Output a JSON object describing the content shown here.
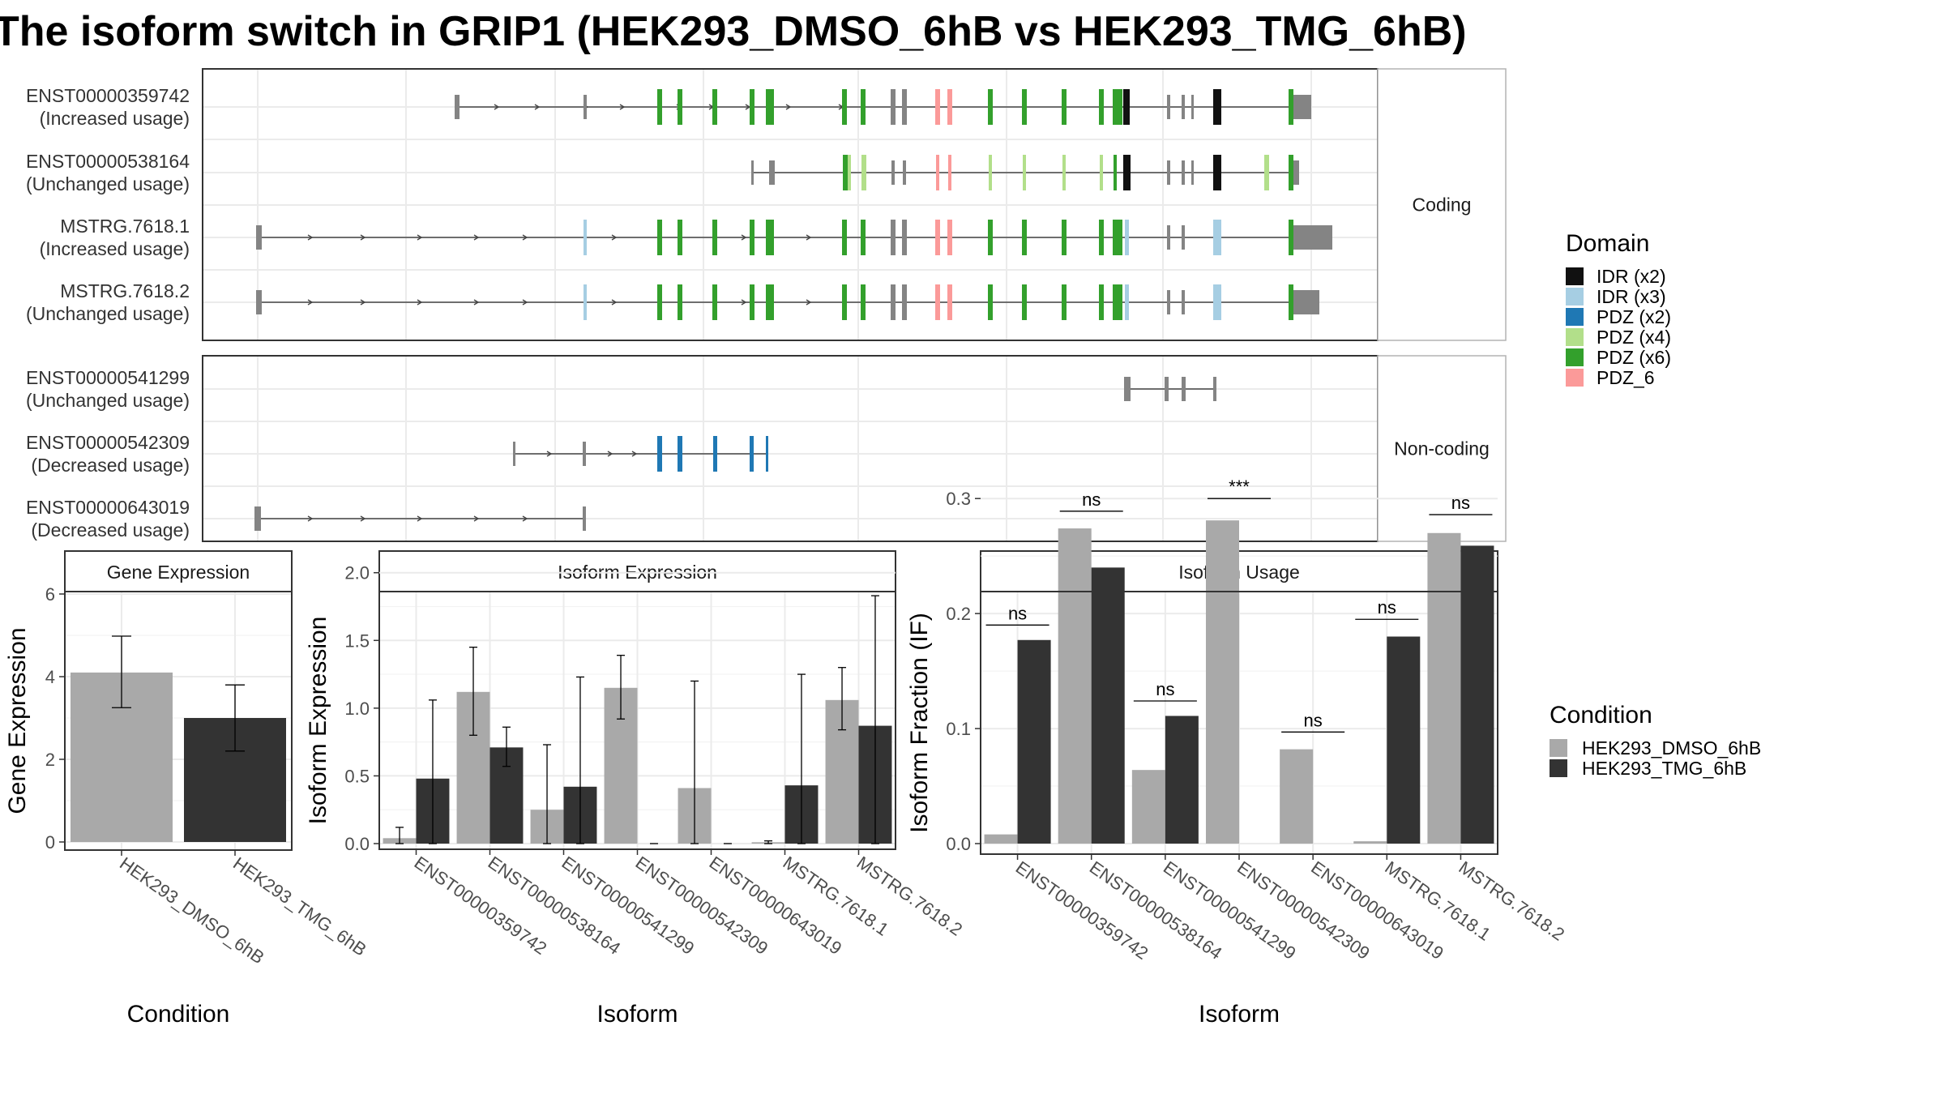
{
  "title": "The isoform switch in GRIP1 (HEK293_DMSO_6hB vs HEK293_TMG_6hB)",
  "colors": {
    "dmso": "#a9a9a9",
    "tmg": "#333333",
    "utr": "#848484",
    "intron": "#444444",
    "IDR (x2)": "#111111",
    "IDR (x3)": "#a6cee3",
    "PDZ (x2)": "#1f78b4",
    "PDZ (x4)": "#b2df8a",
    "PDZ (x6)": "#33a02c",
    "PDZ_6": "#fb9a99"
  },
  "domain_legend": {
    "title": "Domain",
    "items": [
      "IDR (x2)",
      "IDR (x3)",
      "PDZ (x2)",
      "PDZ (x4)",
      "PDZ (x6)",
      "PDZ_6"
    ]
  },
  "condition_legend": {
    "title": "Condition",
    "items": [
      "HEK293_DMSO_6hB",
      "HEK293_TMG_6hB"
    ]
  },
  "transcript_panels": [
    {
      "strip": "Coding",
      "transcripts": [
        {
          "id": "ENST00000359742",
          "usage": "(Increased usage)"
        },
        {
          "id": "ENST00000538164",
          "usage": "(Unchanged usage)"
        },
        {
          "id": "MSTRG.7618.1",
          "usage": "(Increased usage)"
        },
        {
          "id": "MSTRG.7618.2",
          "usage": "(Unchanged usage)"
        }
      ]
    },
    {
      "strip": "Non-coding",
      "transcripts": [
        {
          "id": "ENST00000541299",
          "usage": "(Unchanged usage)"
        },
        {
          "id": "ENST00000542309",
          "usage": "(Decreased usage)"
        },
        {
          "id": "ENST00000643019",
          "usage": "(Decreased usage)"
        }
      ]
    }
  ],
  "chart_data": [
    {
      "type": "bar",
      "title": "Gene Expression",
      "xlabel": "Condition",
      "ylabel": "Gene Expression",
      "ylim": [
        0,
        6
      ],
      "yticks": [
        0,
        2,
        4,
        6
      ],
      "categories": [
        "HEK293_DMSO_6hB",
        "HEK293_TMG_6hB"
      ],
      "values": [
        4.1,
        3.0
      ],
      "error_low": [
        3.25,
        2.2
      ],
      "error_high": [
        4.98,
        3.8
      ]
    },
    {
      "type": "bar",
      "title": "Isoform Expression",
      "xlabel": "Isoform",
      "ylabel": "Isoform Expression",
      "ylim": [
        0,
        2.1
      ],
      "yticks": [
        0.0,
        0.5,
        1.0,
        1.5,
        2.0
      ],
      "ytick_labels": [
        "0.0",
        "0.5",
        "1.0",
        "1.5",
        "2.0"
      ],
      "categories": [
        "ENST00000359742",
        "ENST00000538164",
        "ENST00000541299",
        "ENST00000542309",
        "ENST00000643019",
        "MSTRG.7618.1",
        "MSTRG.7618.2"
      ],
      "series": [
        {
          "name": "HEK293_DMSO_6hB",
          "values": [
            0.04,
            1.12,
            0.25,
            1.15,
            0.41,
            0.01,
            1.06
          ],
          "error_low": [
            0.0,
            0.8,
            0.0,
            0.92,
            0.0,
            0.0,
            0.84
          ],
          "error_high": [
            0.12,
            1.45,
            0.73,
            1.39,
            1.2,
            0.02,
            1.3
          ]
        },
        {
          "name": "HEK293_TMG_6hB",
          "values": [
            0.48,
            0.71,
            0.42,
            0.0,
            0.0,
            0.43,
            0.87
          ],
          "error_low": [
            0.0,
            0.57,
            0.0,
            0.0,
            0.0,
            0.0,
            0.0
          ],
          "error_high": [
            1.06,
            0.86,
            1.23,
            0.0,
            0.0,
            1.25,
            1.83
          ]
        }
      ]
    },
    {
      "type": "bar",
      "title": "Isoform Usage",
      "xlabel": "Isoform",
      "ylabel": "Isoform Fraction (IF)",
      "ylim": [
        0,
        0.32
      ],
      "yticks": [
        0.0,
        0.1,
        0.2,
        0.3
      ],
      "ytick_labels": [
        "0.0",
        "0.1",
        "0.2",
        "0.3"
      ],
      "categories": [
        "ENST00000359742",
        "ENST00000538164",
        "ENST00000541299",
        "ENST00000542309",
        "ENST00000643019",
        "MSTRG.7618.1",
        "MSTRG.7618.2"
      ],
      "series": [
        {
          "name": "HEK293_DMSO_6hB",
          "values": [
            0.008,
            0.274,
            0.064,
            0.281,
            0.082,
            0.002,
            0.27
          ]
        },
        {
          "name": "HEK293_TMG_6hB",
          "values": [
            0.177,
            0.24,
            0.111,
            0.0,
            0.0,
            0.18,
            0.259
          ]
        }
      ],
      "significance": [
        "ns",
        "ns",
        "ns",
        "***",
        "ns",
        "ns",
        "ns"
      ],
      "significance_level": [
        0.19,
        0.289,
        0.124,
        0.3,
        0.097,
        0.195,
        0.286
      ]
    }
  ]
}
